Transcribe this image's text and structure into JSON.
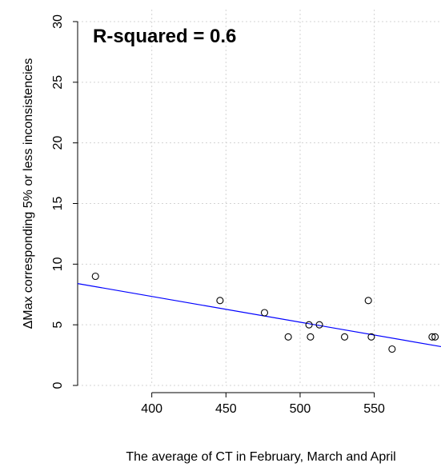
{
  "chart_data": {
    "type": "scatter",
    "title": "",
    "xlabel": "The average of CT in February, March and April",
    "ylabel": "ΔMax corresponding 5% or less inconsistencies",
    "annotation": "R-squared = 0.6",
    "xlim": [
      350,
      595
    ],
    "ylim": [
      0,
      30
    ],
    "x_ticks": [
      400,
      450,
      500,
      550
    ],
    "y_ticks": [
      0,
      5,
      10,
      15,
      20,
      25,
      30
    ],
    "grid": true,
    "points": [
      {
        "x": 362,
        "y": 9
      },
      {
        "x": 446,
        "y": 7
      },
      {
        "x": 476,
        "y": 6
      },
      {
        "x": 492,
        "y": 4
      },
      {
        "x": 506,
        "y": 5
      },
      {
        "x": 507,
        "y": 4
      },
      {
        "x": 513,
        "y": 5
      },
      {
        "x": 530,
        "y": 4
      },
      {
        "x": 546,
        "y": 7
      },
      {
        "x": 548,
        "y": 4
      },
      {
        "x": 562,
        "y": 3
      },
      {
        "x": 589,
        "y": 4
      },
      {
        "x": 591,
        "y": 4
      }
    ],
    "trendline": {
      "type": "linear",
      "start": {
        "x": 350,
        "y": 8.4
      },
      "end": {
        "x": 595,
        "y": 3.2
      }
    },
    "colors": {
      "points": "#000000",
      "trendline": "#0000ff",
      "grid": "#d3d3d3",
      "axis": "#000000"
    }
  }
}
